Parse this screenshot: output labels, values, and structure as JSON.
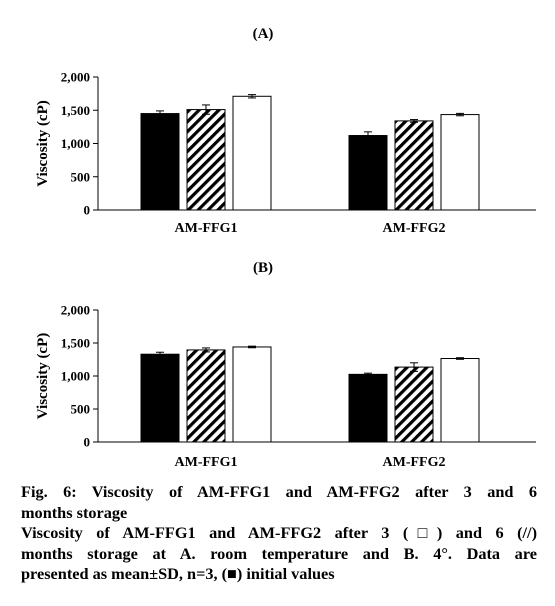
{
  "chart_data": [
    {
      "type": "bar",
      "panel": "(A)",
      "categories": [
        "AM-FFG1",
        "AM-FFG2"
      ],
      "ylabel": "Viscosity (cP)",
      "ylim": [
        0,
        2000
      ],
      "yticks": [
        "0",
        "500",
        "1,000",
        "1,500",
        "2,000"
      ],
      "series": [
        {
          "fill": "solid",
          "values": [
            1450,
            1120
          ],
          "errors": [
            40,
            55
          ]
        },
        {
          "fill": "hatched",
          "values": [
            1510,
            1340
          ],
          "errors": [
            70,
            20
          ]
        },
        {
          "fill": "open",
          "values": [
            1710,
            1435
          ],
          "errors": [
            25,
            18
          ]
        }
      ]
    },
    {
      "type": "bar",
      "panel": "(B)",
      "categories": [
        "AM-FFG1",
        "AM-FFG2"
      ],
      "ylabel": "Viscosity (cP)",
      "ylim": [
        0,
        2000
      ],
      "yticks": [
        "0",
        "500",
        "1,000",
        "1,500",
        "2,000"
      ],
      "series": [
        {
          "fill": "solid",
          "values": [
            1330,
            1025
          ],
          "errors": [
            30,
            18
          ]
        },
        {
          "fill": "hatched",
          "values": [
            1395,
            1135
          ],
          "errors": [
            30,
            65
          ]
        },
        {
          "fill": "open",
          "values": [
            1440,
            1265
          ],
          "errors": [
            12,
            12
          ]
        }
      ]
    }
  ],
  "caption": {
    "lines": [
      "Fig. 6: Viscosity of AM-FFG1 and AM-FFG2 after 3 and 6",
      "months storage",
      "Viscosity of AM-FFG1 and AM-FFG2 after 3 (□) and 6 (//)",
      "months storage at A. room temperature and B. 4°. Data are",
      "presented as mean±SD, n=3, (■) initial values"
    ]
  }
}
